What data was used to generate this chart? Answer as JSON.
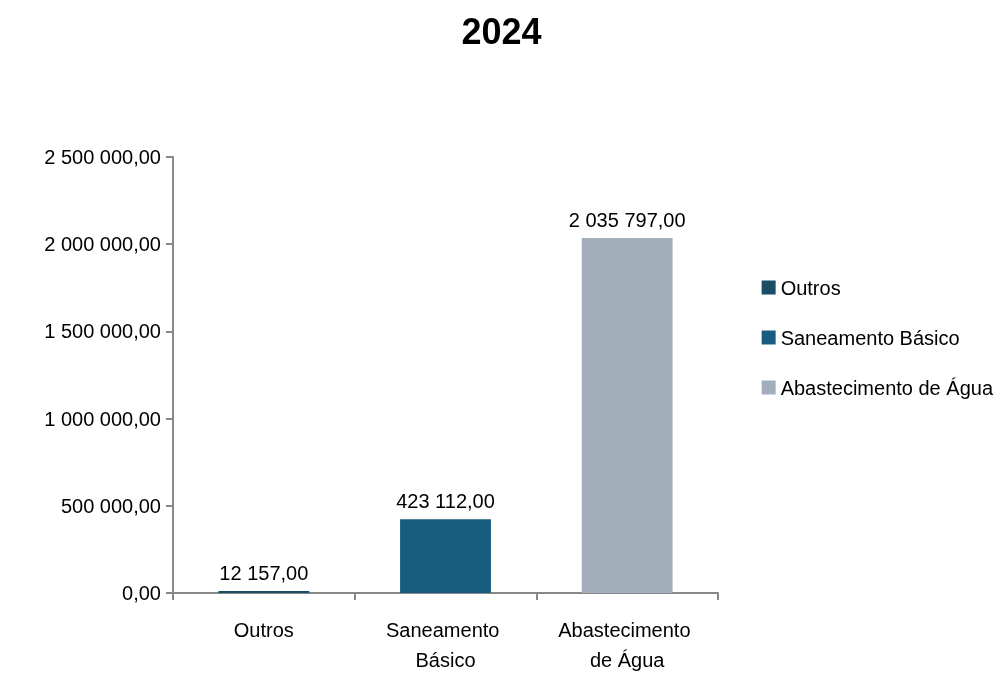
{
  "chart_data": {
    "type": "bar",
    "title": "2024",
    "categories": [
      "Outros",
      "Saneamento Básico",
      "Abastecimento de Água"
    ],
    "series": [
      {
        "name": "Outros",
        "color": "#1a4d66",
        "values": [
          12157,
          null,
          null
        ],
        "value_labels": [
          "12 157,00",
          null,
          null
        ]
      },
      {
        "name": "Saneamento Básico",
        "color": "#185d80",
        "values": [
          null,
          423112,
          null
        ],
        "value_labels": [
          null,
          "423 112,00",
          null
        ]
      },
      {
        "name": "Abastecimento de Água",
        "color": "#a2afba",
        "values": [
          null,
          null,
          2035797
        ],
        "value_labels": [
          null,
          null,
          "2 035 797,00"
        ]
      }
    ],
    "ylim": [
      0,
      2500000
    ],
    "yticks": [
      {
        "value": 0,
        "label": "0,00"
      },
      {
        "value": 500000,
        "label": "500 000,00"
      },
      {
        "value": 1000000,
        "label": "1 000 000,00"
      },
      {
        "value": 1500000,
        "label": "1 500 000,00"
      },
      {
        "value": 2000000,
        "label": "2 000 000,00"
      },
      {
        "value": 2500000,
        "label": "2 500 000,00"
      }
    ],
    "grid": false,
    "legend": "right"
  }
}
